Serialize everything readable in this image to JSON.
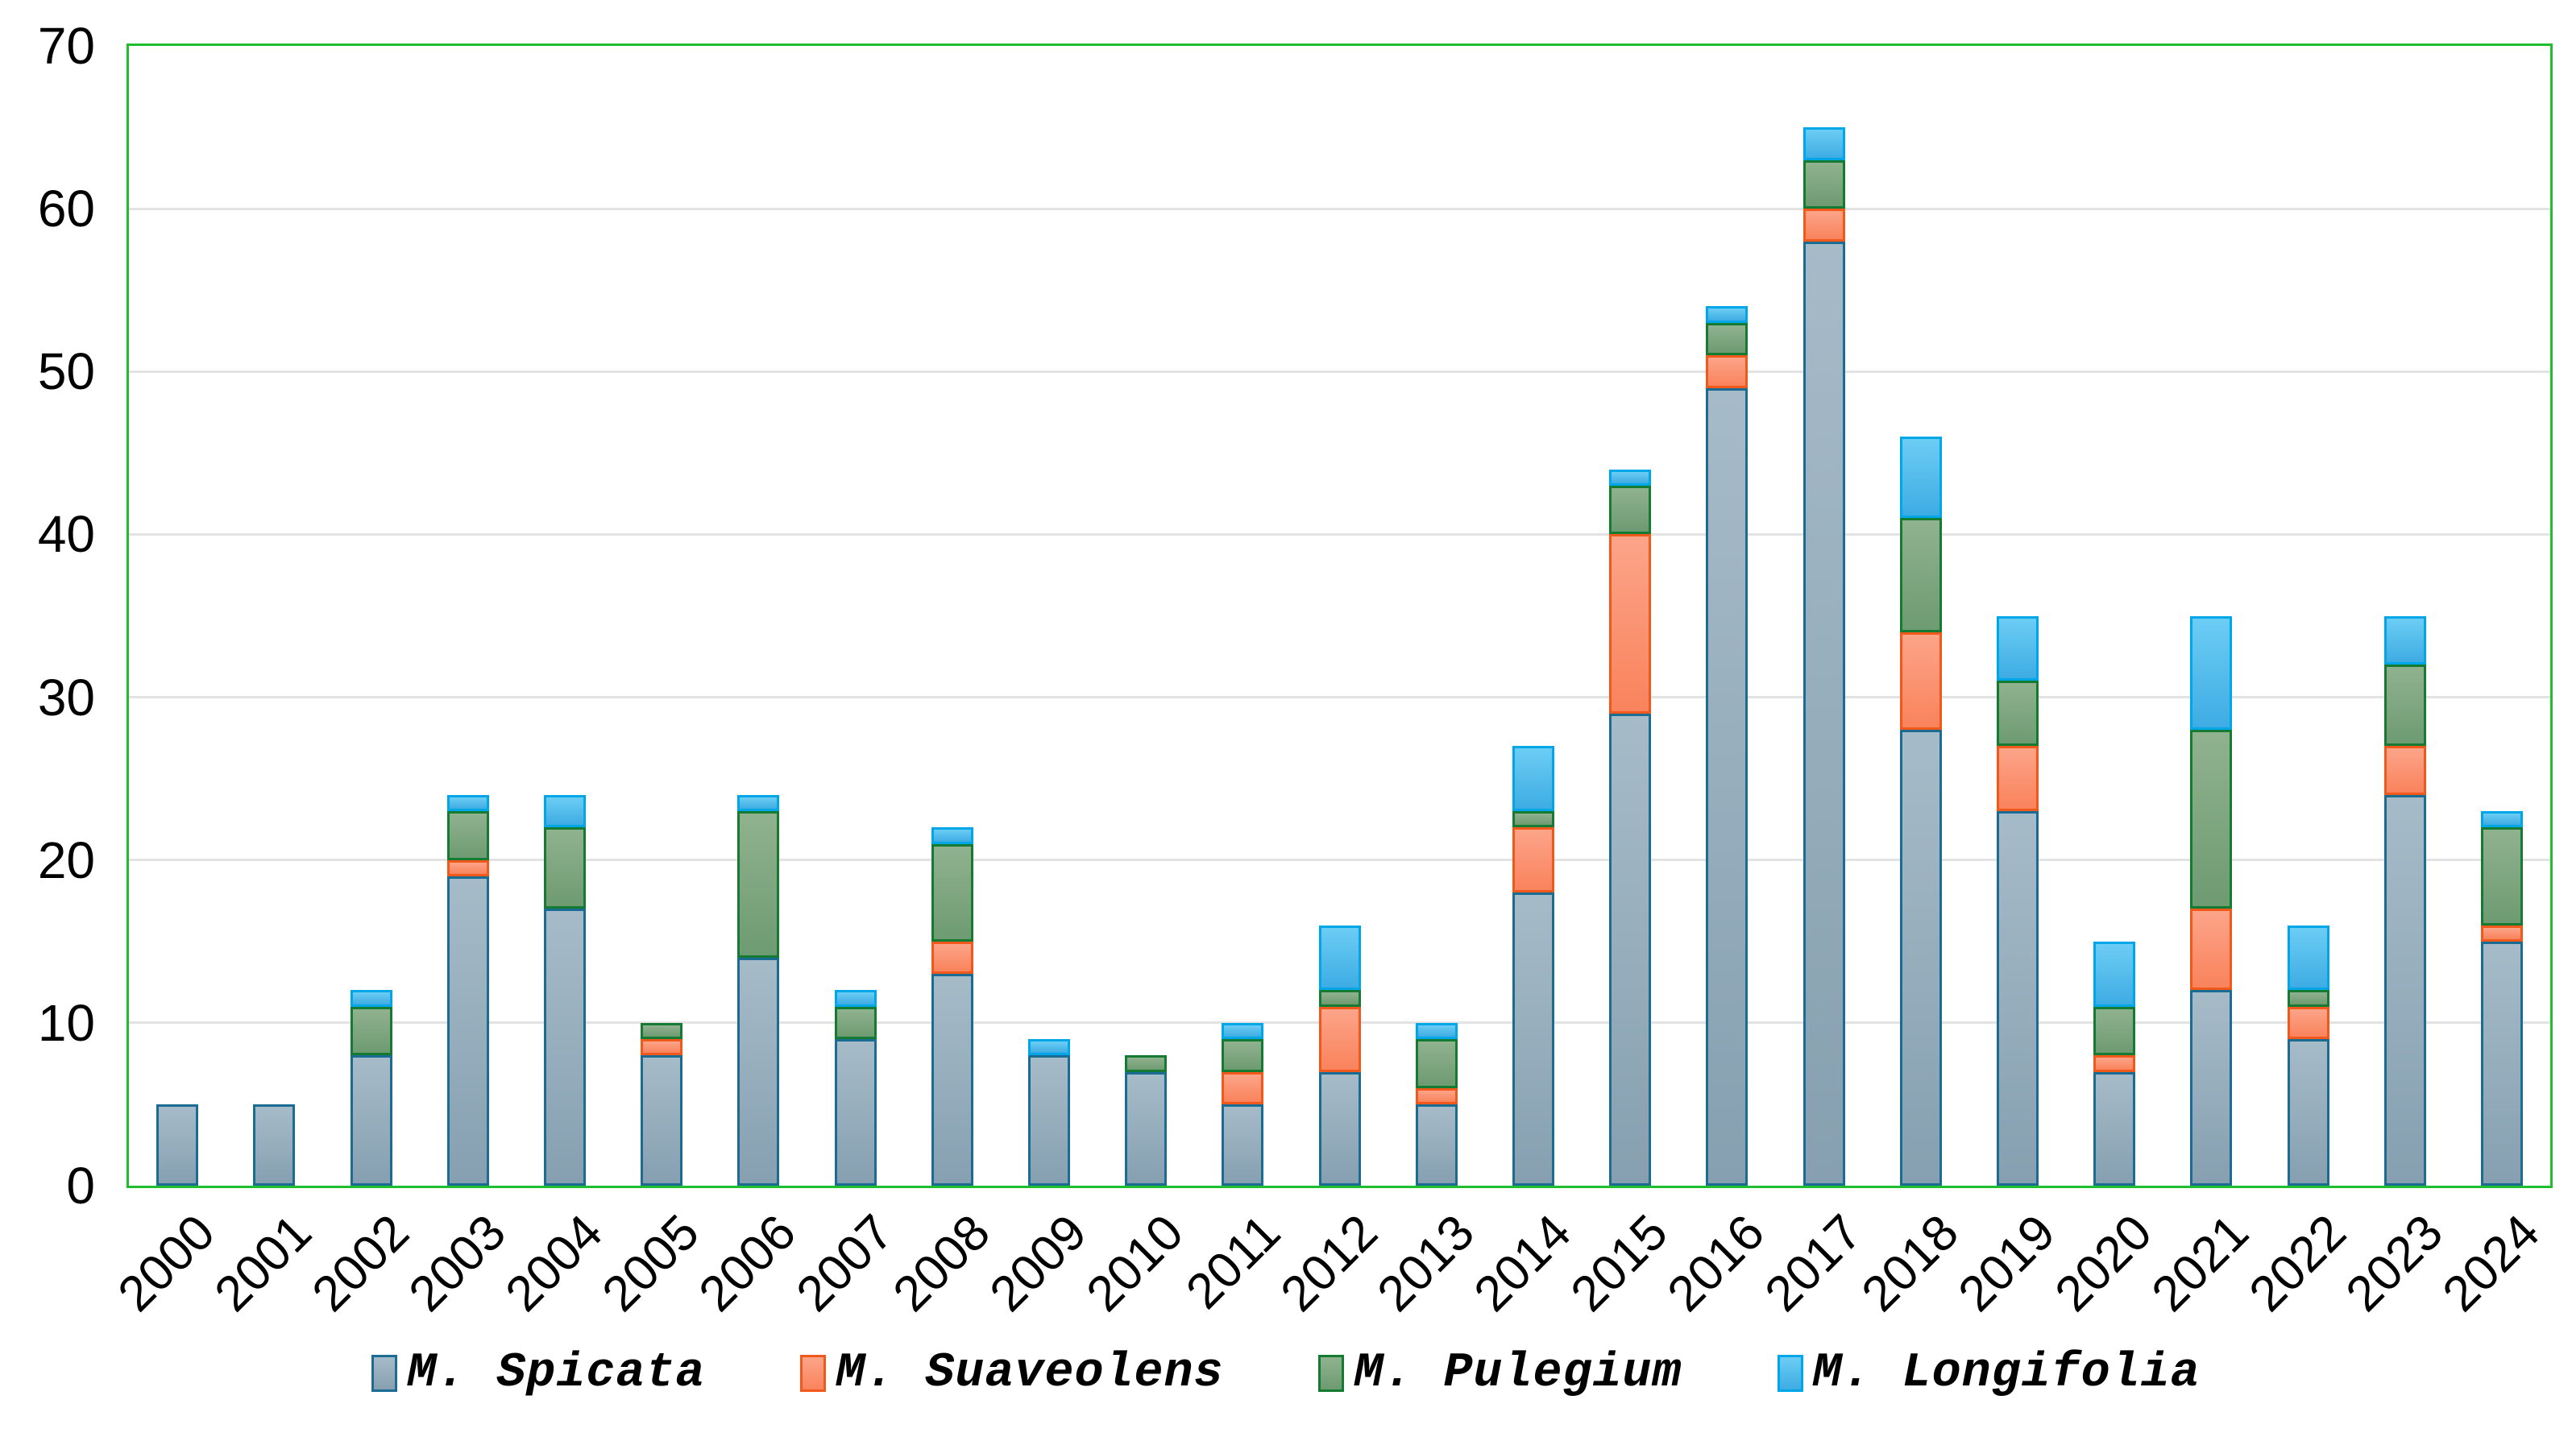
{
  "y_axis": {
    "ticks": [
      "70",
      "60",
      "50",
      "40",
      "30",
      "20",
      "10",
      "0"
    ],
    "gridline_color": "#e3e3e3",
    "plot_border_color": "#1fbe2f"
  },
  "chart_data": {
    "type": "bar",
    "stacked": true,
    "title": "",
    "xlabel": "",
    "ylabel": "",
    "ylim": [
      0,
      70
    ],
    "gridline_step": 10,
    "grid": true,
    "legend_position": "bottom",
    "categories": [
      "2000",
      "2001",
      "2002",
      "2003",
      "2004",
      "2005",
      "2006",
      "2007",
      "2008",
      "2009",
      "2010",
      "2011",
      "2012",
      "2013",
      "2014",
      "2015",
      "2016",
      "2017",
      "2018",
      "2019",
      "2020",
      "2021",
      "2022",
      "2023",
      "2024"
    ],
    "series": [
      {
        "name": "M. Spicata",
        "fill_top": "#a6bbc8",
        "fill_bottom": "#86a0b1",
        "border": "#1a6c92",
        "values": [
          5,
          5,
          8,
          19,
          17,
          8,
          14,
          9,
          13,
          8,
          7,
          5,
          7,
          5,
          18,
          29,
          49,
          58,
          28,
          23,
          7,
          12,
          9,
          24,
          15
        ]
      },
      {
        "name": "M. Suaveolens",
        "fill_top": "#fca489",
        "fill_bottom": "#f9835c",
        "border": "#f1591c",
        "values": [
          0,
          0,
          0,
          1,
          0,
          1,
          0,
          0,
          2,
          0,
          0,
          2,
          4,
          1,
          4,
          11,
          2,
          2,
          6,
          4,
          1,
          5,
          2,
          3,
          1
        ]
      },
      {
        "name": "M. Pulegium",
        "fill_top": "#90b28f",
        "fill_bottom": "#6e9b71",
        "border": "#157b33",
        "values": [
          0,
          0,
          3,
          3,
          5,
          1,
          9,
          2,
          6,
          0,
          1,
          2,
          1,
          3,
          1,
          3,
          2,
          3,
          7,
          4,
          3,
          11,
          1,
          5,
          6
        ]
      },
      {
        "name": "M. Longifolia",
        "fill_top": "#6ccdf4",
        "fill_bottom": "#3eace3",
        "border": "#00a7e8",
        "values": [
          0,
          0,
          1,
          1,
          2,
          0,
          1,
          1,
          1,
          1,
          0,
          1,
          4,
          1,
          4,
          1,
          1,
          2,
          5,
          4,
          4,
          7,
          4,
          3,
          1
        ]
      }
    ],
    "totals": [
      5,
      5,
      12,
      24,
      24,
      10,
      24,
      12,
      22,
      9,
      8,
      10,
      16,
      10,
      27,
      44,
      54,
      65,
      46,
      35,
      15,
      35,
      16,
      35,
      23
    ]
  }
}
